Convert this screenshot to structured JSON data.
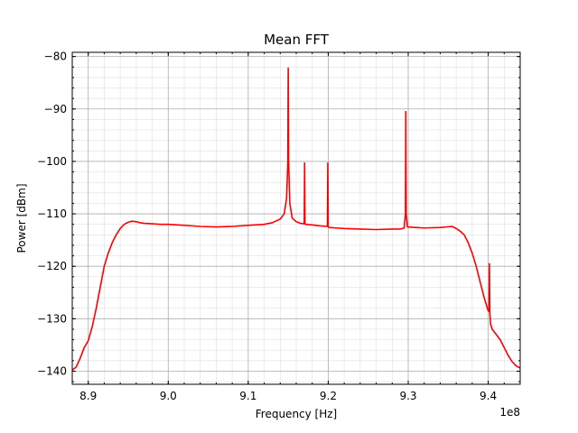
{
  "chart_data": {
    "type": "line",
    "title": "Mean FFT",
    "xlabel": "Frequency [Hz]",
    "ylabel": "Power [dBm]",
    "x_offset_label": "1e8",
    "xlim": [
      8.88,
      9.44
    ],
    "ylim": [
      -142.5,
      -79.2
    ],
    "grid": {
      "major": true,
      "minor": true
    },
    "legend": "none",
    "x_ticks": [
      8.9,
      9.0,
      9.1,
      9.2,
      9.3,
      9.4
    ],
    "x_tick_labels": [
      "8.9",
      "9.0",
      "9.1",
      "9.2",
      "9.3",
      "9.4"
    ],
    "y_ticks": [
      -140,
      -130,
      -120,
      -110,
      -100,
      -90,
      -80
    ],
    "y_tick_labels": [
      "−140",
      "−130",
      "−120",
      "−110",
      "−100",
      "−90",
      "−80"
    ],
    "colors": {
      "line": "#ff0000",
      "grid_major": "#b0b0b0",
      "grid_minor": "#e0e0e0",
      "axes": "#000000"
    },
    "series": [
      {
        "x": [
          8.88,
          8.885,
          8.89,
          8.895,
          8.9,
          8.905,
          8.91,
          8.915,
          8.92,
          8.925,
          8.93,
          8.935,
          8.94,
          8.945,
          8.95,
          8.955,
          8.96,
          8.965,
          8.97,
          8.98,
          8.99,
          9.0,
          9.02,
          9.04,
          9.06,
          9.08,
          9.1,
          9.12,
          9.13,
          9.14,
          9.145,
          9.148,
          9.1495,
          9.15,
          9.1505,
          9.152,
          9.155,
          9.16,
          9.165,
          9.17,
          9.1705,
          9.171,
          9.1715,
          9.172,
          9.18,
          9.19,
          9.199,
          9.1995,
          9.2,
          9.2005,
          9.201,
          9.21,
          9.22,
          9.24,
          9.26,
          9.28,
          9.29,
          9.295,
          9.2965,
          9.297,
          9.2975,
          9.299,
          9.31,
          9.32,
          9.34,
          9.355,
          9.36,
          9.365,
          9.37,
          9.375,
          9.38,
          9.385,
          9.39,
          9.395,
          9.4,
          9.401,
          9.4015,
          9.402,
          9.4025,
          9.403,
          9.405,
          9.41,
          9.415,
          9.42,
          9.425,
          9.43,
          9.435,
          9.44
        ],
        "y": [
          -139.8,
          -139.2,
          -137.5,
          -135.5,
          -134.2,
          -131.5,
          -128.0,
          -124.0,
          -120.0,
          -117.5,
          -115.5,
          -114.0,
          -112.8,
          -112.0,
          -111.6,
          -111.4,
          -111.5,
          -111.7,
          -111.8,
          -111.9,
          -112.0,
          -112.0,
          -112.2,
          -112.4,
          -112.5,
          -112.4,
          -112.2,
          -112.0,
          -111.7,
          -111.0,
          -110.0,
          -107.0,
          -100.0,
          -82.2,
          -100.0,
          -108.0,
          -110.8,
          -111.5,
          -111.8,
          -111.9,
          -100.3,
          -111.9,
          -112.0,
          -112.0,
          -112.1,
          -112.3,
          -112.4,
          -100.3,
          -112.4,
          -112.5,
          -112.6,
          -112.7,
          -112.8,
          -112.9,
          -113.0,
          -112.9,
          -112.9,
          -112.7,
          -110.0,
          -90.5,
          -110.0,
          -112.5,
          -112.6,
          -112.7,
          -112.6,
          -112.4,
          -112.8,
          -113.3,
          -114.0,
          -115.5,
          -117.5,
          -120.0,
          -123.0,
          -126.0,
          -128.5,
          -128.6,
          -119.5,
          -129.0,
          -130.0,
          -131.0,
          -132.0,
          -133.0,
          -134.0,
          -135.5,
          -137.0,
          -138.2,
          -139.0,
          -139.4
        ]
      }
    ]
  }
}
